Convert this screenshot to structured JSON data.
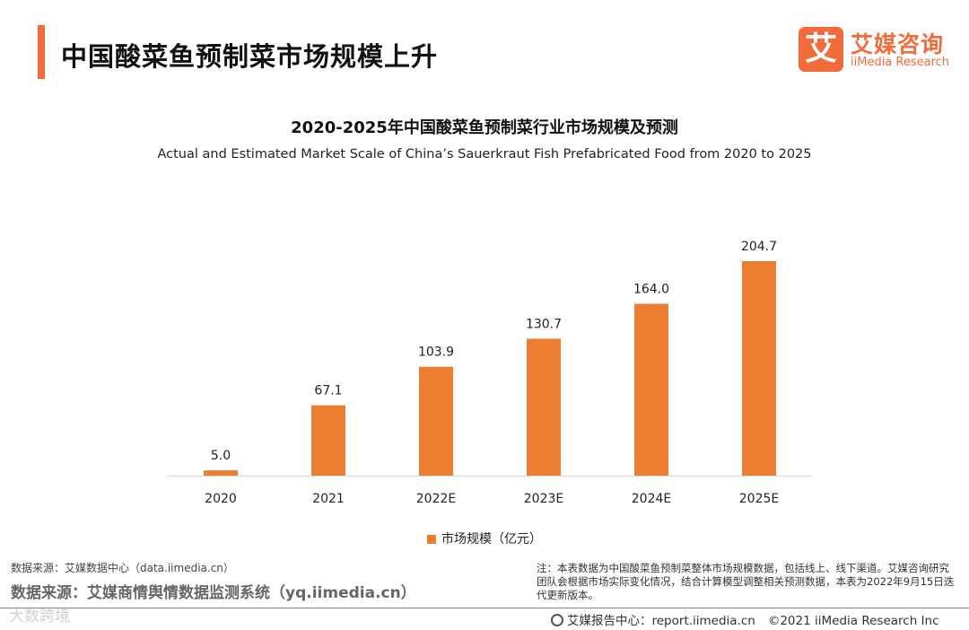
{
  "header": {
    "title": "中国酸菜鱼预制菜市场规模上升",
    "logo_mark": "艾",
    "logo_cn": "艾媒咨询",
    "logo_en": "iiMedia Research"
  },
  "colors": {
    "accent": "#f26b3a",
    "bar": "#ed7d31"
  },
  "chart_data": {
    "type": "bar",
    "title": "2020-2025年中国酸菜鱼预制菜行业市场规模及预测",
    "subtitle": "Actual and Estimated Market Scale of China’s Sauerkraut Fish Prefabricated Food from 2020 to 2025",
    "categories": [
      "2020",
      "2021",
      "2022E",
      "2023E",
      "2024E",
      "2025E"
    ],
    "series": [
      {
        "name": "市场规模（亿元）",
        "values": [
          5.0,
          67.1,
          103.9,
          130.7,
          164.0,
          204.7
        ]
      }
    ],
    "data_labels": [
      "5.0",
      "67.1",
      "103.9",
      "130.7",
      "164.0",
      "204.7"
    ],
    "ylim": [
      0,
      204.7
    ],
    "y_axis_visible": false,
    "grid": false,
    "legend_position": "bottom"
  },
  "footer": {
    "source_small": "数据来源：艾媒数据中心（data.iimedia.cn）",
    "source_large": "数据来源：艾媒商情舆情数据监测系统（yq.iimedia.cn）",
    "note": "注：本表数据为中国酸菜鱼预制菜整体市场规模数据，包括线上、线下渠道。艾媒咨询研究团队会根据市场实际变化情况，结合计算模型调整相关预测数据，本表为2022年9月15日迭代更新版本。",
    "report_center": "艾媒报告中心：report.iimedia.cn",
    "copyright": "©2021 iiMedia Research Inc",
    "watermark": "大数跨境"
  }
}
